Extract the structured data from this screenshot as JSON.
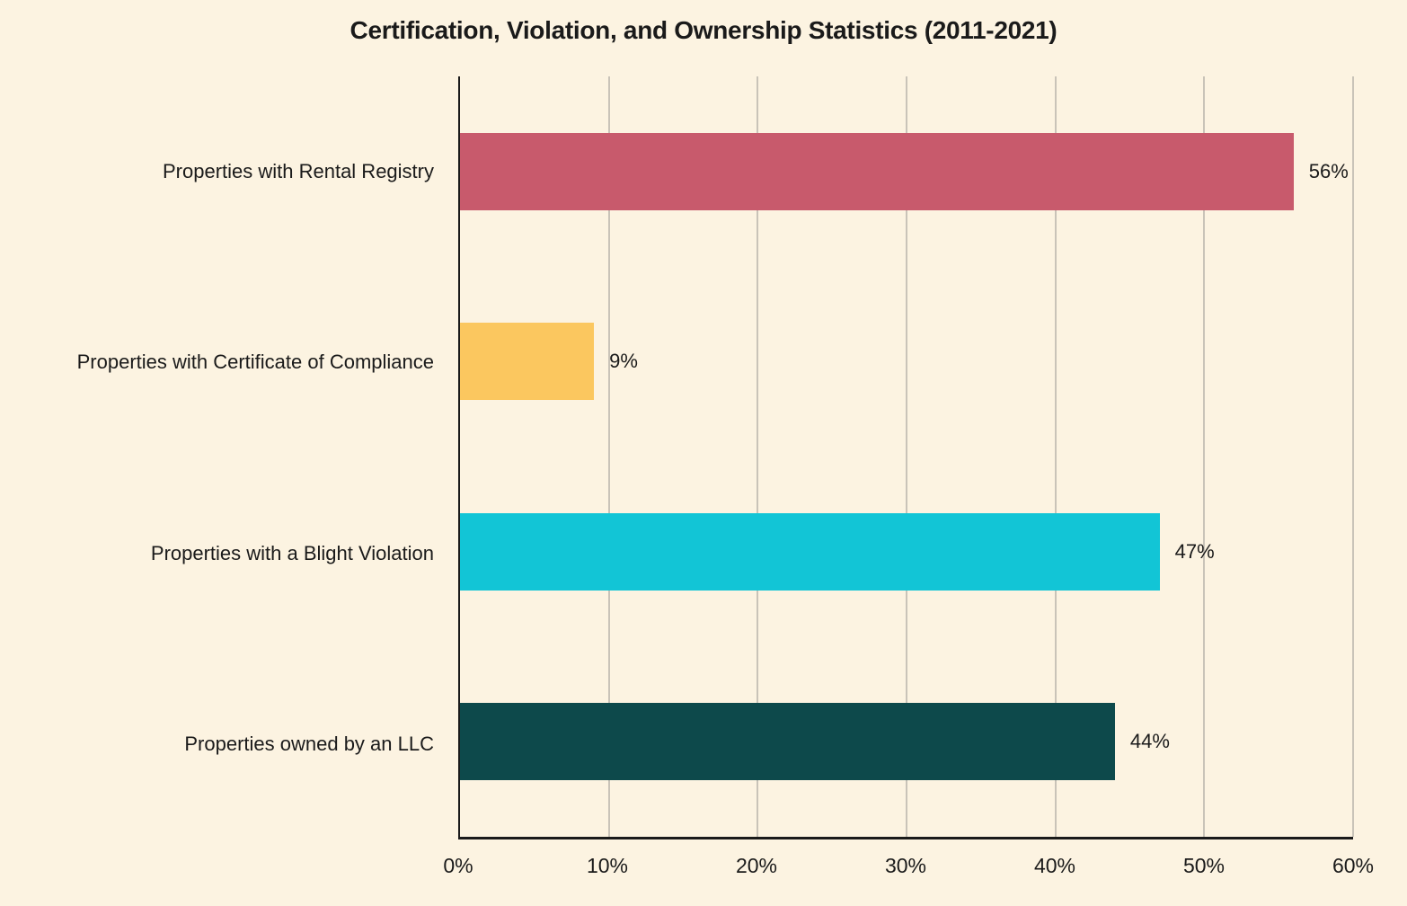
{
  "chart_data": {
    "type": "bar",
    "orientation": "horizontal",
    "title": "Certification, Violation, and Ownership Statistics (2011-2021)",
    "categories": [
      "Properties with Rental Registry",
      "Properties with Certificate of Compliance",
      "Properties with a Blight Violation",
      "Properties owned by an LLC"
    ],
    "values": [
      56,
      9,
      47,
      44
    ],
    "value_labels": [
      "56%",
      "9%",
      "47%",
      "44%"
    ],
    "bar_colors": [
      "#c85a6c",
      "#fbc75f",
      "#12c5d6",
      "#0d494b"
    ],
    "xlabel": "",
    "ylabel": "",
    "xlim": [
      0,
      60
    ],
    "x_ticks": [
      "0%",
      "10%",
      "20%",
      "30%",
      "40%",
      "50%",
      "60%"
    ],
    "grid": "vertical-gridlines-on",
    "legend": "none",
    "background_color": "#fcf3e1",
    "gridline_color": "#c9c3b8",
    "axis_color": "#1a1a1a",
    "text_color": "#1a1a1a"
  }
}
